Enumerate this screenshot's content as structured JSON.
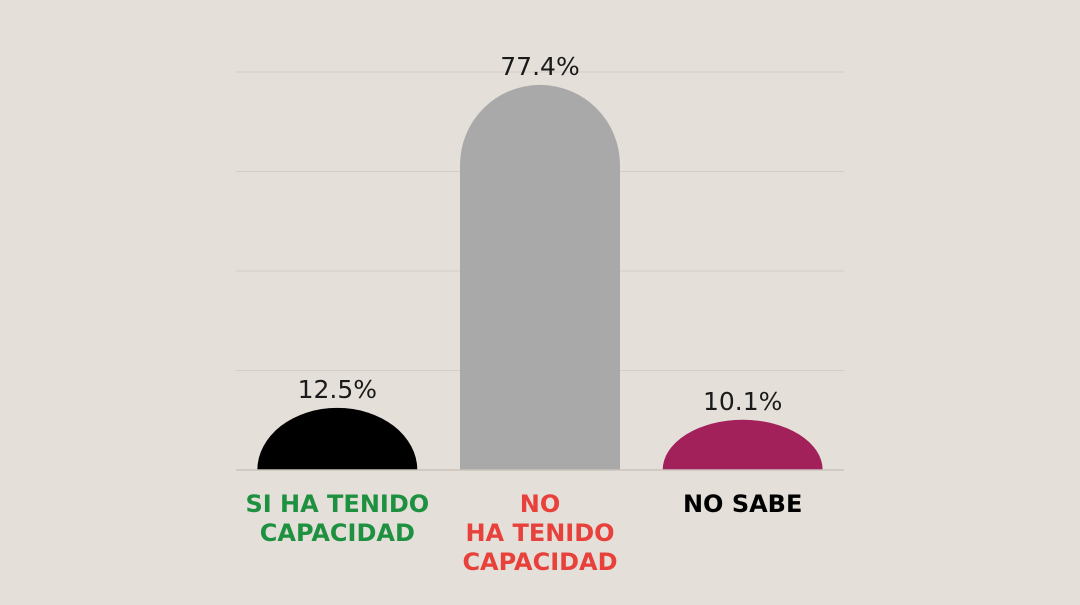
{
  "chart_data": {
    "type": "bar",
    "categories": [
      [
        "SI HA TENIDO",
        "CAPACIDAD"
      ],
      [
        "NO",
        "HA TENIDO",
        "CAPACIDAD"
      ],
      [
        "NO SABE"
      ]
    ],
    "values": [
      12.5,
      77.4,
      10.1
    ],
    "value_labels": [
      "12.5%",
      "77.4%",
      "10.1%"
    ],
    "bar_colors": [
      "#000000",
      "#a9a9a9",
      "#a3215a"
    ],
    "label_colors": [
      "#1e9140",
      "#e8403a",
      "#000000"
    ],
    "ylim": [
      0,
      80
    ],
    "grid": true,
    "grid_color": "#d2ccc5",
    "title": "",
    "xlabel": "",
    "ylabel": ""
  }
}
